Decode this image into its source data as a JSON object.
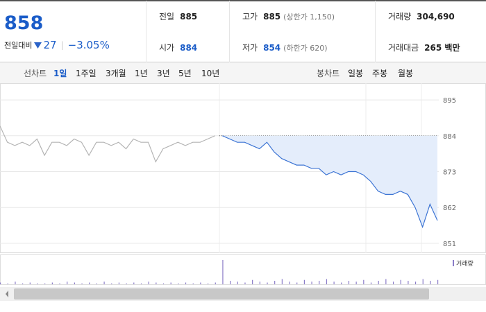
{
  "summary": {
    "price": "858",
    "change_label": "전일대비",
    "change": "27",
    "change_pct": "−3.05%"
  },
  "stats": [
    {
      "label": "전일",
      "value": "885"
    },
    {
      "label": "고가",
      "value": "885",
      "note": "(상한가 1,150)"
    },
    {
      "label": "거래량",
      "value": "304,690"
    },
    {
      "label": "시가",
      "value": "884"
    },
    {
      "label": "저가",
      "value": "854",
      "note": "(하한가 620)"
    },
    {
      "label": "거래대금",
      "value": "265 백만"
    }
  ],
  "tabs": {
    "line_label": "선차트",
    "line_items": [
      "1일",
      "1주일",
      "3개월",
      "1년",
      "3년",
      "5년",
      "10년"
    ],
    "selected_index": 0,
    "candle_label": "봉차트",
    "candle_items": [
      "일봉",
      "주봉",
      "월봉"
    ]
  },
  "chart_data": {
    "type": "line",
    "ylim": [
      848,
      898
    ],
    "yticks": [
      851,
      862,
      873,
      884,
      895
    ],
    "baseline": 884,
    "series": [
      {
        "name": "prev",
        "color": "#b4b4b4",
        "values": [
          887,
          882,
          881,
          882,
          881,
          883,
          878,
          882,
          882,
          881,
          883,
          882,
          878,
          882,
          882,
          881,
          882,
          880,
          883,
          882,
          882,
          876,
          880,
          881,
          882,
          881,
          882,
          882,
          883,
          884,
          null,
          null,
          null,
          null,
          null,
          null,
          null,
          null,
          null,
          null,
          null,
          null,
          null,
          null,
          null,
          null,
          null,
          null,
          null,
          null,
          null,
          null,
          null,
          null,
          null,
          null,
          null,
          null,
          null,
          null
        ]
      },
      {
        "name": "today",
        "color": "#3c74d4",
        "values": [
          null,
          null,
          null,
          null,
          null,
          null,
          null,
          null,
          null,
          null,
          null,
          null,
          null,
          null,
          null,
          null,
          null,
          null,
          null,
          null,
          null,
          null,
          null,
          null,
          null,
          null,
          null,
          null,
          null,
          null,
          884,
          883,
          882,
          882,
          881,
          880,
          882,
          879,
          877,
          876,
          875,
          875,
          874,
          874,
          872,
          873,
          872,
          873,
          873,
          872,
          870,
          867,
          866,
          866,
          867,
          866,
          862,
          856,
          863,
          858
        ]
      }
    ],
    "volume": {
      "name": "거래량",
      "color": "#8a7cc8",
      "values": [
        2,
        1,
        3,
        1,
        2,
        1,
        1,
        2,
        1,
        3,
        2,
        1,
        2,
        1,
        3,
        1,
        2,
        1,
        2,
        1,
        3,
        2,
        1,
        2,
        1,
        2,
        1,
        2,
        1,
        2,
        28,
        4,
        3,
        2,
        5,
        3,
        2,
        4,
        6,
        3,
        2,
        5,
        3,
        4,
        6,
        3,
        2,
        4,
        3,
        5,
        2,
        4,
        6,
        3,
        5,
        4,
        3,
        6,
        4,
        5
      ]
    }
  }
}
